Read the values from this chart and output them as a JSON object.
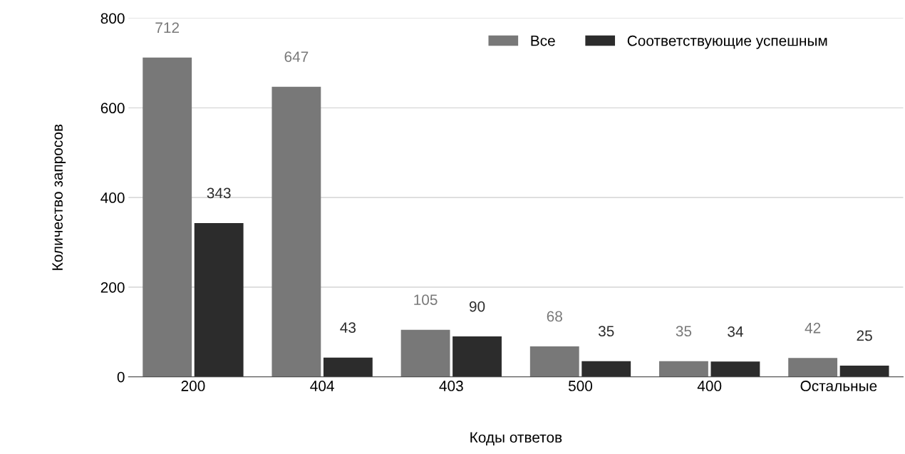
{
  "chart_data": {
    "type": "bar",
    "xlabel": "Коды ответов",
    "ylabel": "Количество запросов",
    "categories": [
      "200",
      "404",
      "403",
      "500",
      "400",
      "Остальные"
    ],
    "series": [
      {
        "name": "Все",
        "color": "#787878",
        "values": [
          712,
          647,
          105,
          68,
          35,
          42
        ]
      },
      {
        "name": "Соответствующие успешным",
        "color": "#2c2c2c",
        "values": [
          343,
          43,
          90,
          35,
          34,
          25
        ]
      }
    ],
    "ylim": [
      0,
      800
    ],
    "yticks": [
      0,
      200,
      400,
      600,
      800
    ],
    "grid": "y",
    "legend": "top right",
    "data_labels": true
  }
}
